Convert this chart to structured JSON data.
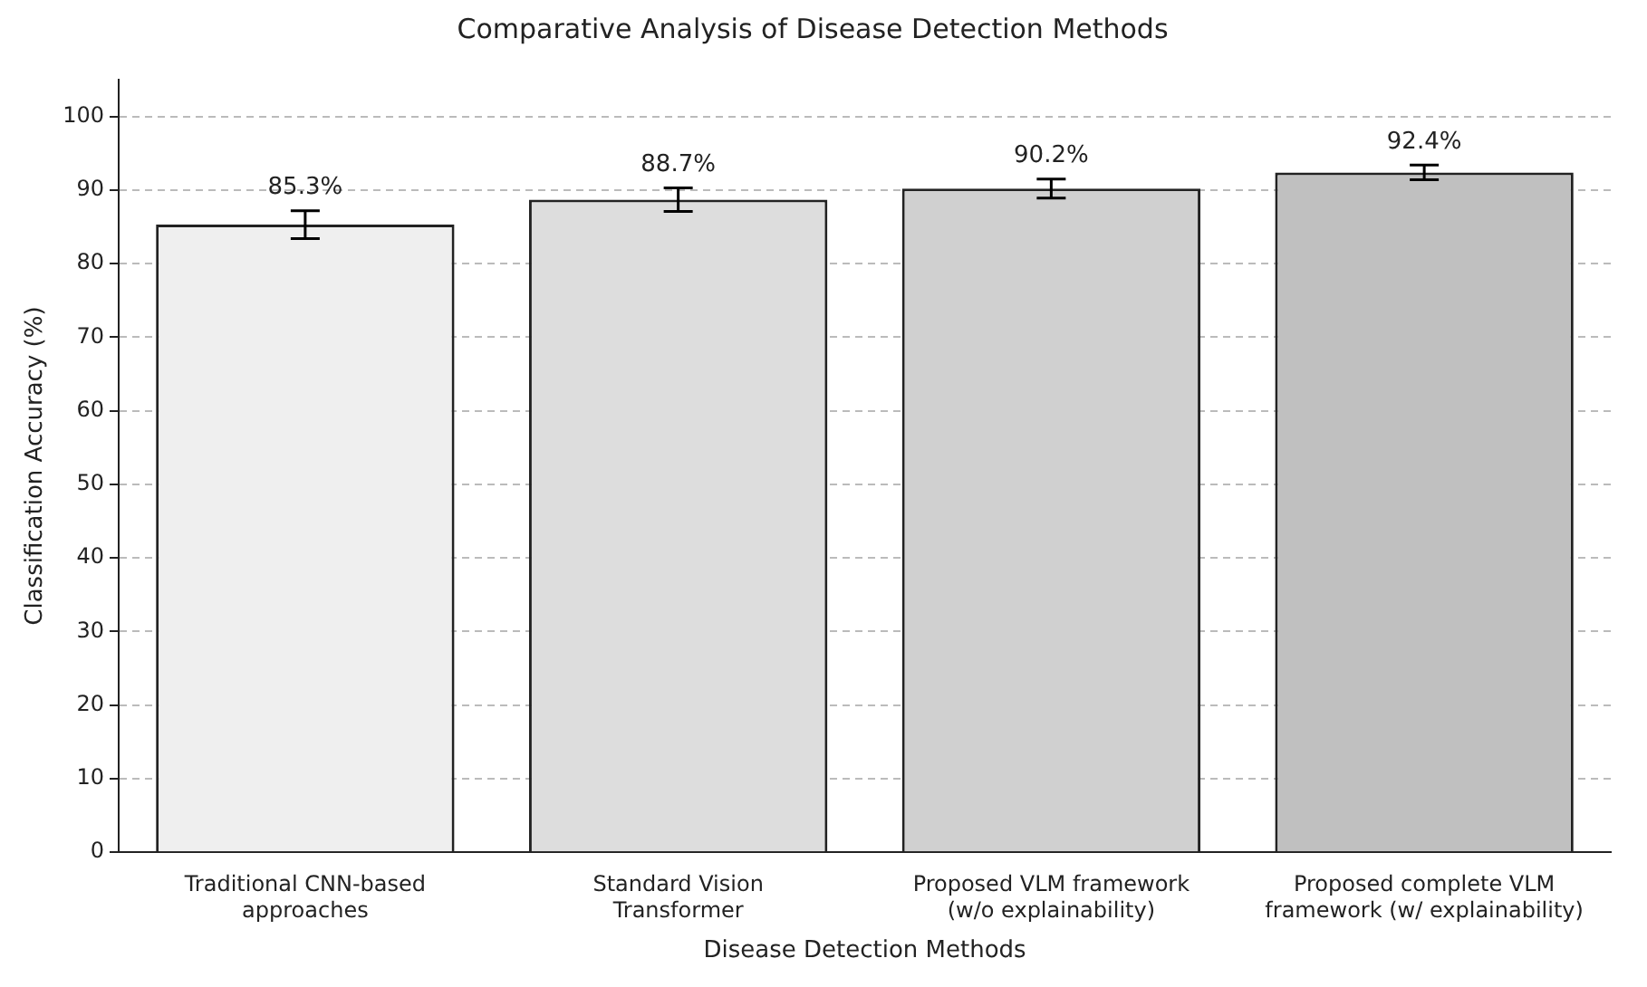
{
  "chart_data": {
    "type": "bar",
    "title": "Comparative Analysis of Disease Detection Methods",
    "xlabel": "Disease Detection Methods",
    "ylabel": "Classification Accuracy (%)",
    "categories": [
      "Traditional CNN-based\napproaches",
      "Standard Vision\nTransformer",
      "Proposed VLM framework\n(w/o explainability)",
      "Proposed complete VLM\nframework (w/ explainability)"
    ],
    "values": [
      85.3,
      88.7,
      90.2,
      92.4
    ],
    "colors": [
      "#efefef",
      "#dddddd",
      "#d0d0d0",
      "#c0c0c0"
    ],
    "errors": [
      1.9,
      1.6,
      1.3,
      1.0
    ],
    "value_labels": [
      "85.3%",
      "88.7%",
      "90.2%",
      "92.4%"
    ],
    "ylim": [
      0,
      105
    ],
    "yticks": [
      0,
      10,
      20,
      30,
      40,
      50,
      60,
      70,
      80,
      90,
      100
    ],
    "grid": "y",
    "legend": false
  }
}
